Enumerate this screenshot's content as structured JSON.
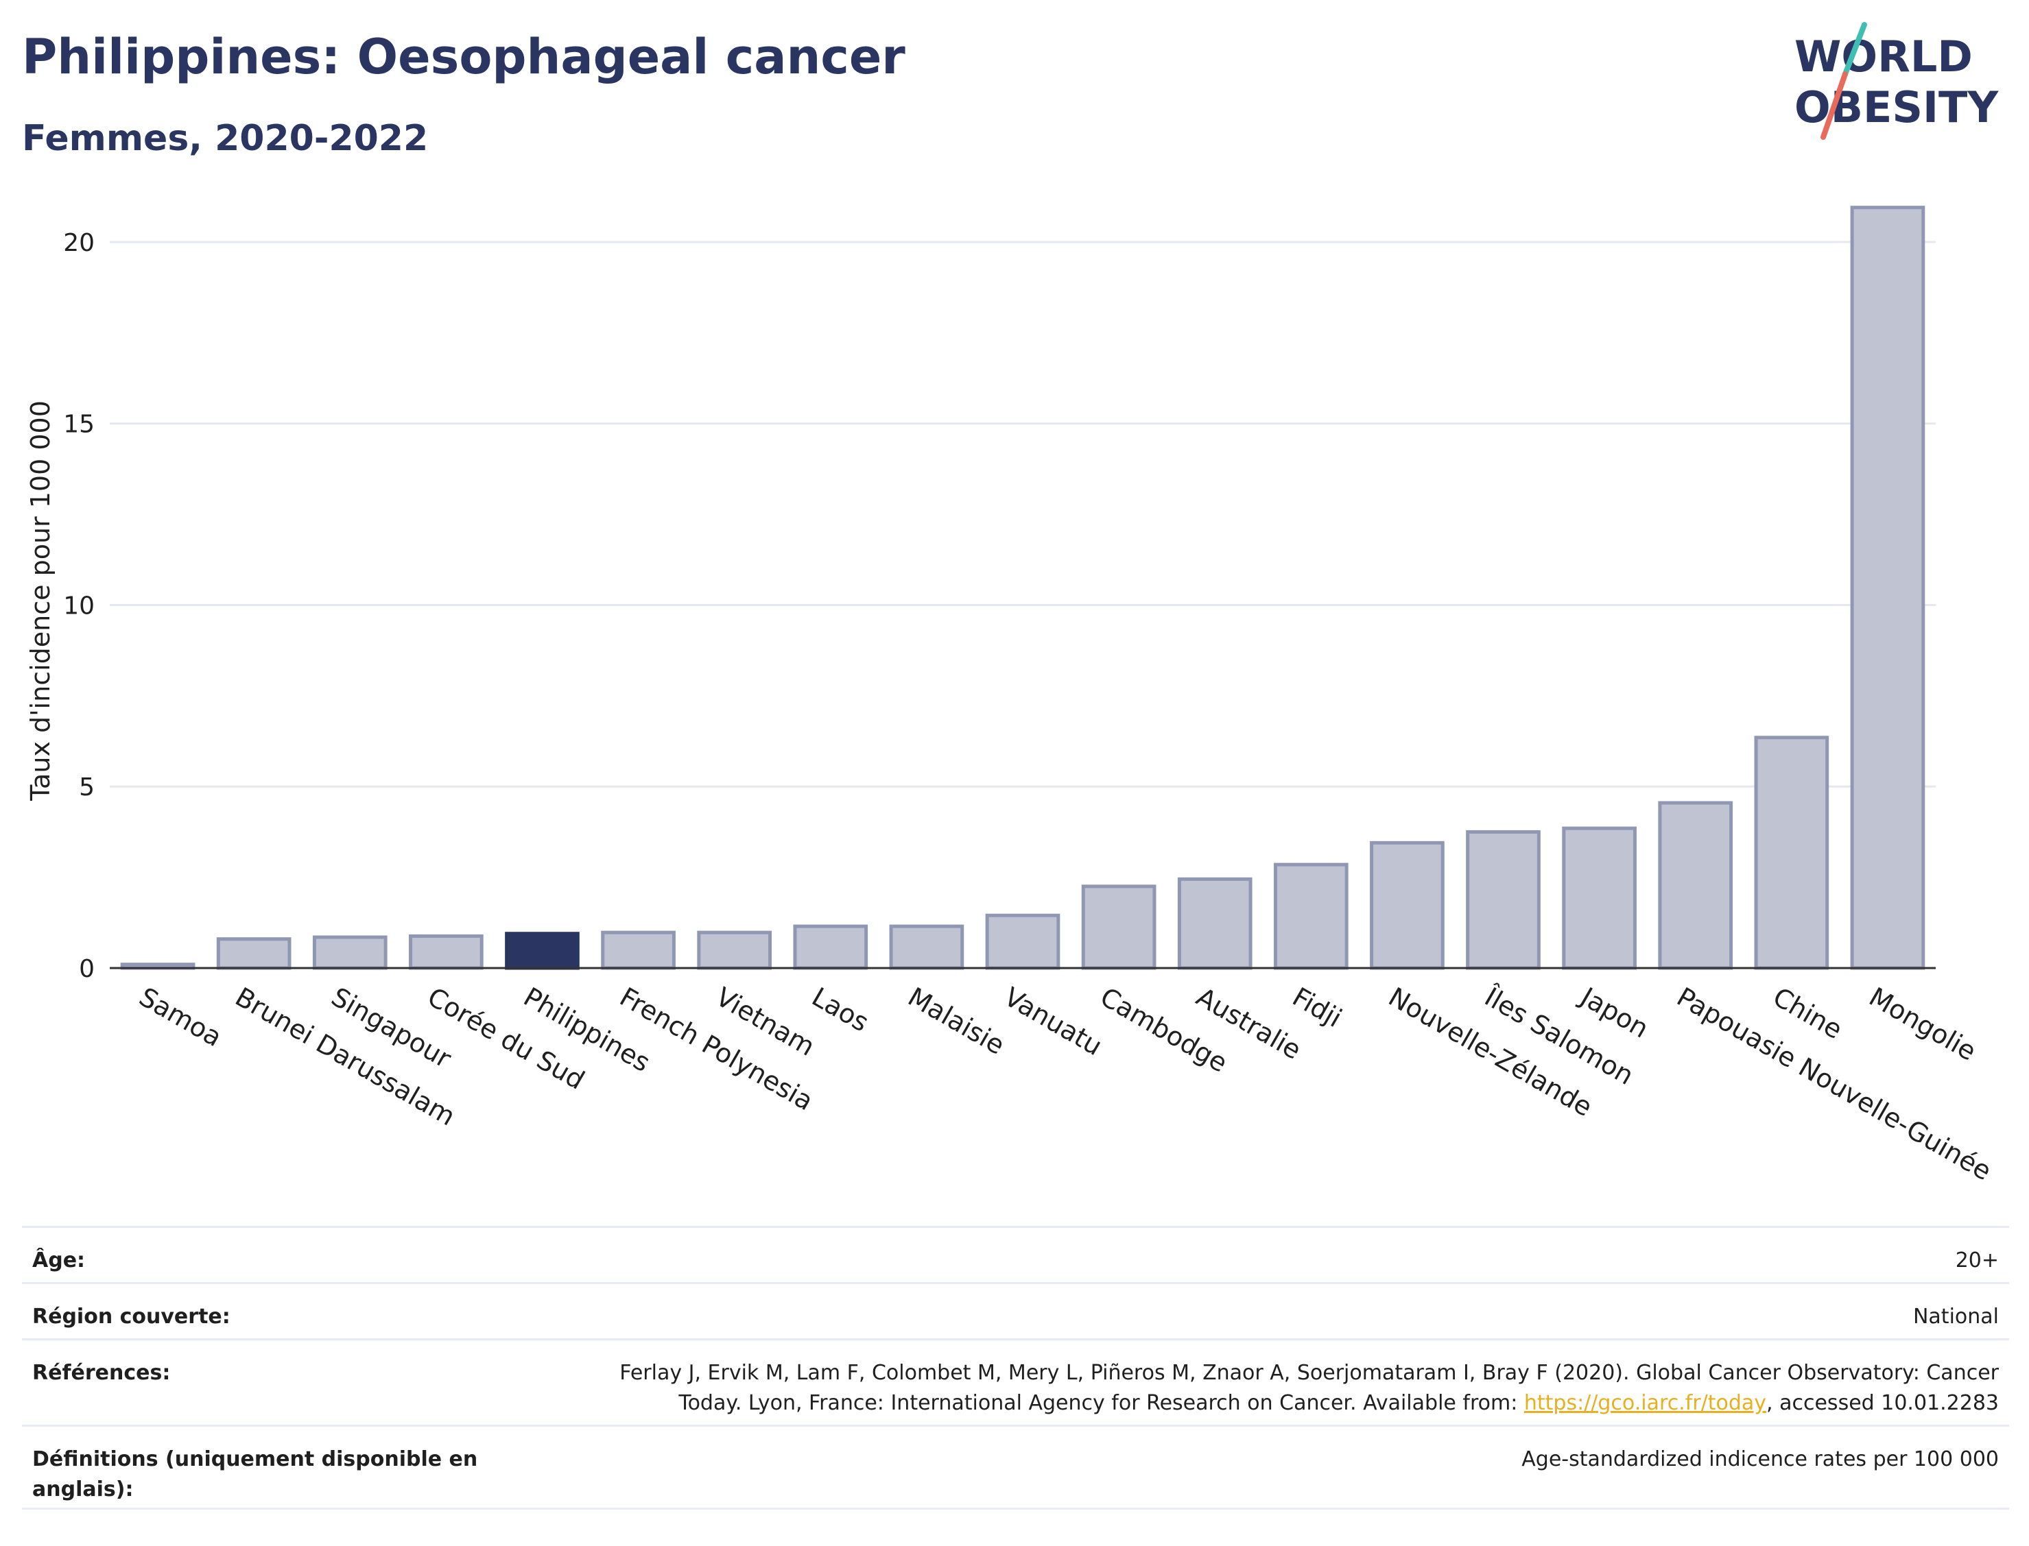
{
  "header": {
    "title": "Philippines: Oesophageal cancer",
    "subtitle": "Femmes, 2020-2022"
  },
  "logo": {
    "line1": "WORLD",
    "line2": "OBESITY"
  },
  "chart_data": {
    "type": "bar",
    "title": "Philippines: Oesophageal cancer",
    "subtitle": "Femmes, 2020-2022",
    "ylabel": "Taux d'incidence pour 100 000",
    "xlabel": "",
    "ylim": [
      0,
      21
    ],
    "yticks": [
      0,
      5,
      10,
      15,
      20
    ],
    "grid": true,
    "categories": [
      "Samoa",
      "Brunei Darussalam",
      "Singapour",
      "Corée du Sud",
      "Philippines",
      "French Polynesia",
      "Vietnam",
      "Laos",
      "Malaisie",
      "Vanuatu",
      "Cambodge",
      "Australie",
      "Fidji",
      "Nouvelle-Zélande",
      "Îles Salomon",
      "Japon",
      "Papouasie Nouvelle-Guinée",
      "Chine",
      "Mongolie"
    ],
    "values": [
      0.1,
      0.8,
      0.85,
      0.88,
      0.95,
      0.98,
      0.98,
      1.15,
      1.15,
      1.45,
      2.25,
      2.45,
      2.85,
      3.45,
      3.75,
      3.85,
      4.55,
      6.35,
      20.95
    ],
    "highlight": "Philippines",
    "colors": {
      "bar": "#c0c4d2",
      "bar_border": "#8f97b3",
      "highlight": "#2a3561"
    }
  },
  "info": {
    "rows": [
      {
        "label": "Âge:",
        "value": "20+"
      },
      {
        "label": "Région couverte:",
        "value": "National"
      },
      {
        "label": "Références:",
        "value_before": "Ferlay J, Ervik M, Lam F, Colombet M, Mery L, Piñeros M, Znaor A, Soerjomataram I, Bray F (2020). Global Cancer Observatory: Cancer Today. Lyon, France: International Agency for Research on Cancer. Available from: ",
        "link": "https://gco.iarc.fr/today",
        "value_after": ", accessed 10.01.2283"
      },
      {
        "label": "Définitions (uniquement disponible en anglais):",
        "value": "Age-standardized indicence rates per 100 000"
      }
    ]
  }
}
